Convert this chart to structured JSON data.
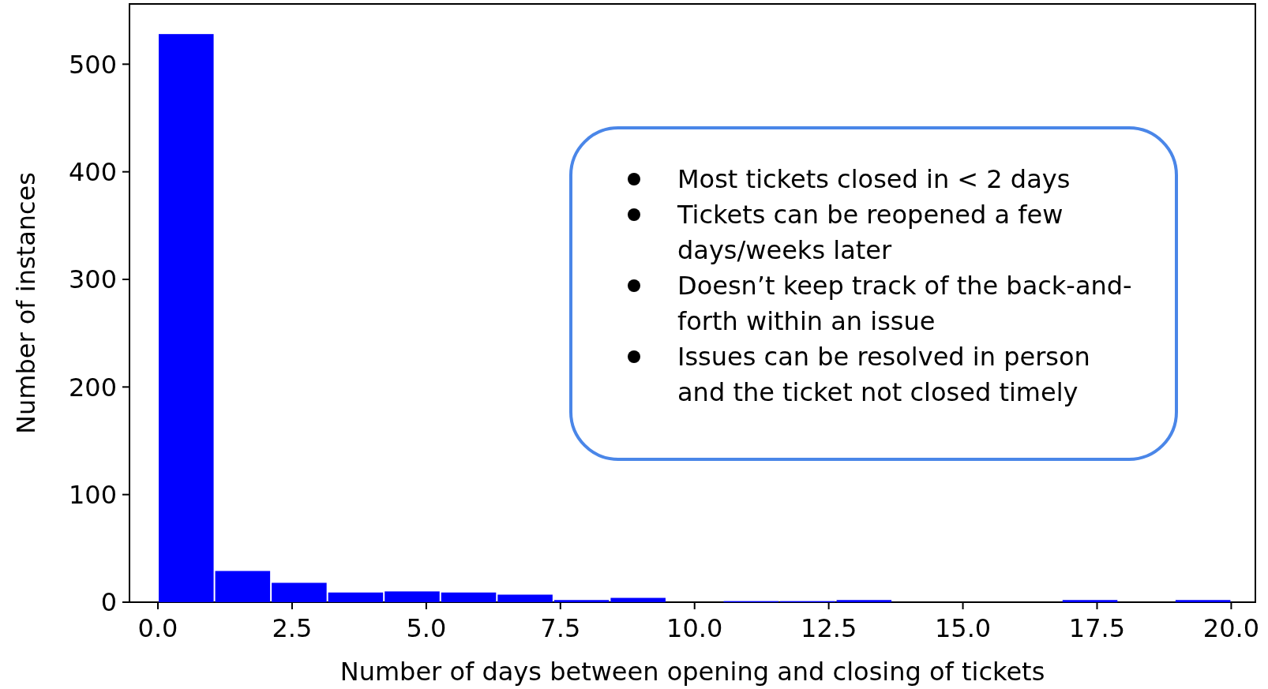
{
  "chart_data": {
    "type": "histogram",
    "xlabel": "Number of days between opening and closing of tickets",
    "ylabel": "Number of instances",
    "bins": [
      0,
      1.0526,
      2.1053,
      3.1579,
      4.2105,
      5.2632,
      6.3158,
      7.3684,
      8.4211,
      9.4737,
      10.5263,
      11.5789,
      12.6316,
      13.6842,
      14.7368,
      15.7895,
      16.8421,
      17.8947,
      18.9474,
      20
    ],
    "values": [
      528,
      29,
      18,
      9,
      10,
      9,
      7,
      2,
      4,
      0,
      1,
      1,
      2,
      0,
      0,
      0,
      2,
      0,
      2
    ],
    "color": "#0000ff",
    "xlim": [
      -0.53,
      20.45
    ],
    "ylim": [
      0,
      556
    ],
    "xticks": [
      {
        "value": 0,
        "label": "0.0"
      },
      {
        "value": 2.5,
        "label": "2.5"
      },
      {
        "value": 5,
        "label": "5.0"
      },
      {
        "value": 7.5,
        "label": "7.5"
      },
      {
        "value": 10,
        "label": "10.0"
      },
      {
        "value": 12.5,
        "label": "12.5"
      },
      {
        "value": 15,
        "label": "15.0"
      },
      {
        "value": 17.5,
        "label": "17.5"
      },
      {
        "value": 20,
        "label": "20.0"
      }
    ],
    "yticks": [
      0,
      100,
      200,
      300,
      400,
      500
    ],
    "annotations": [
      "Most tickets closed in < 2 days",
      "Tickets can be reopened a few days/weeks later",
      "Doesn’t keep track of the back-and-forth within an issue",
      "Issues can be resolved in person and the ticket not closed timely"
    ]
  }
}
